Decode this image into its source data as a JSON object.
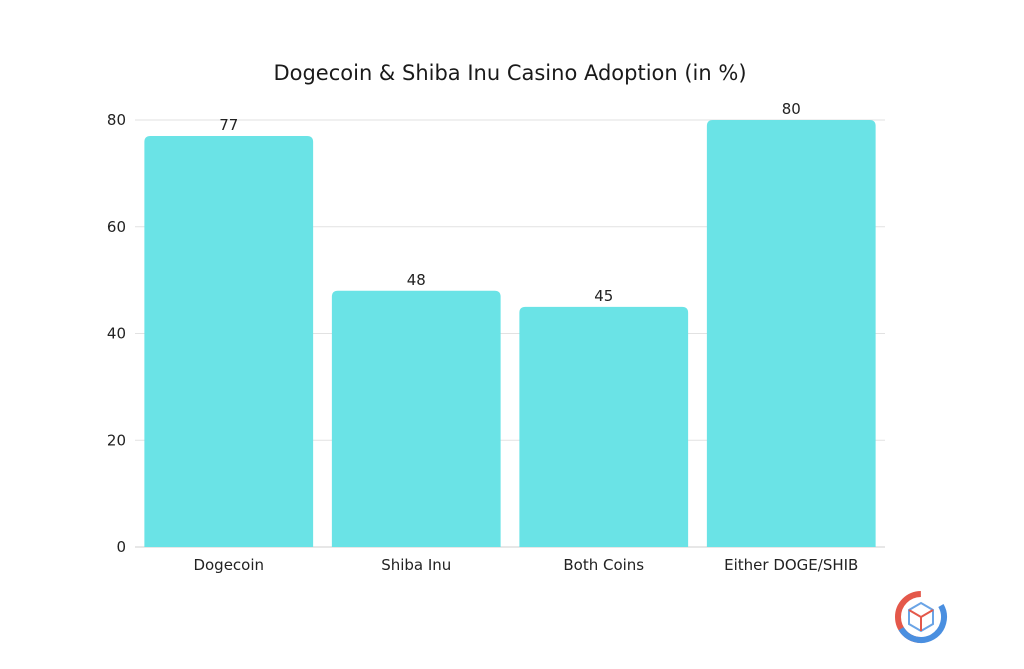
{
  "chart_data": {
    "type": "bar",
    "title": "Dogecoin & Shiba Inu Casino Adoption (in %)",
    "xlabel": "",
    "ylabel": "",
    "categories": [
      "Dogecoin",
      "Shiba Inu",
      "Both Coins",
      "Either DOGE/SHIB"
    ],
    "values": [
      77,
      48,
      45,
      80
    ],
    "data_labels": [
      "77",
      "48",
      "45",
      "80"
    ],
    "ylim": [
      0,
      80
    ],
    "yticks": [
      0,
      20,
      40,
      60,
      80
    ],
    "grid": true,
    "legend": "none",
    "bar_color": "#6ae3e6"
  },
  "logo": {
    "name": "cube-logo-icon"
  }
}
